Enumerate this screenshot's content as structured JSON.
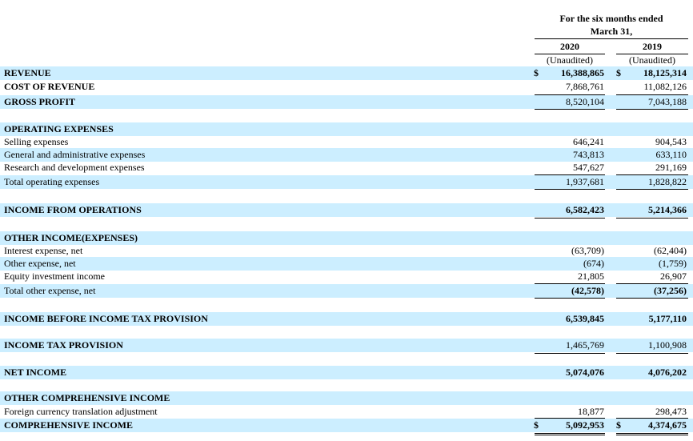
{
  "header": {
    "period_line1": "For the six months ended",
    "period_line2": "March 31,",
    "col1_year": "2020",
    "col2_year": "2019",
    "col1_note": "(Unaudited)",
    "col2_note": "(Unaudited)"
  },
  "rows": {
    "revenue": {
      "label": "REVENUE",
      "v2020": "16,388,865",
      "v2019": "18,125,314",
      "cur1": "$",
      "cur2": "$"
    },
    "cost_of_revenue": {
      "label": "COST OF REVENUE",
      "v2020": "7,868,761",
      "v2019": "11,082,126"
    },
    "gross_profit": {
      "label": "GROSS PROFIT",
      "v2020": "8,520,104",
      "v2019": "7,043,188"
    },
    "operating_expenses": {
      "label": "OPERATING EXPENSES"
    },
    "selling": {
      "label": "Selling expenses",
      "v2020": "646,241",
      "v2019": "904,543"
    },
    "gna": {
      "label": "General and administrative expenses",
      "v2020": "743,813",
      "v2019": "633,110"
    },
    "rnd": {
      "label": "Research and development expenses",
      "v2020": "547,627",
      "v2019": "291,169"
    },
    "total_opex": {
      "label": "Total operating expenses",
      "v2020": "1,937,681",
      "v2019": "1,828,822"
    },
    "income_ops": {
      "label": "INCOME FROM OPERATIONS",
      "v2020": "6,582,423",
      "v2019": "5,214,366"
    },
    "other_income": {
      "label": "OTHER INCOME(EXPENSES)"
    },
    "interest": {
      "label": "Interest expense, net",
      "v2020": "(63,709)",
      "v2019": "(62,404)"
    },
    "other_expense": {
      "label": "Other expense, net",
      "v2020": "(674)",
      "v2019": "(1,759)"
    },
    "equity_inv": {
      "label": "Equity investment income",
      "v2020": "21,805",
      "v2019": "26,907"
    },
    "total_other": {
      "label": "Total other expense, net",
      "v2020": "(42,578)",
      "v2019": "(37,256)"
    },
    "income_before_tax": {
      "label": "INCOME BEFORE INCOME TAX PROVISION",
      "v2020": "6,539,845",
      "v2019": "5,177,110"
    },
    "tax": {
      "label": "INCOME TAX PROVISION",
      "v2020": "1,465,769",
      "v2019": "1,100,908"
    },
    "net_income": {
      "label": "NET INCOME",
      "v2020": "5,074,076",
      "v2019": "4,076,202"
    },
    "oci": {
      "label": "OTHER COMPREHENSIVE INCOME"
    },
    "fx": {
      "label": "Foreign currency translation adjustment",
      "v2020": "18,877",
      "v2019": "298,473"
    },
    "comprehensive": {
      "label": "COMPREHENSIVE INCOME",
      "v2020": "5,092,953",
      "v2019": "4,374,675",
      "cur1": "$",
      "cur2": "$"
    }
  },
  "colors": {
    "band": "#cceeff",
    "text": "#000000"
  }
}
